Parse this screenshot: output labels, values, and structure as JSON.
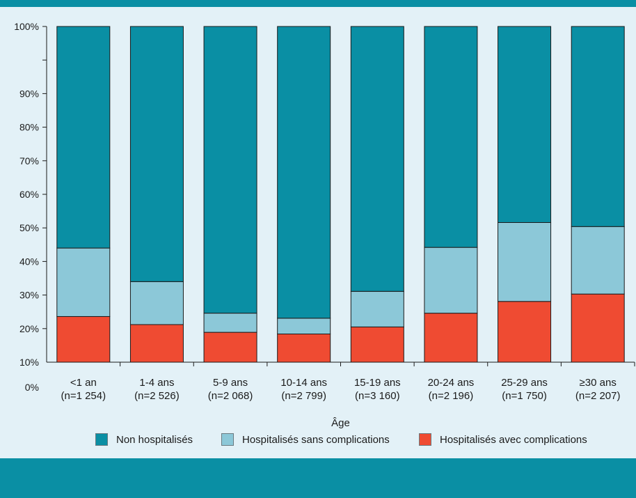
{
  "chart_data": {
    "type": "bar",
    "stacked": true,
    "title": "",
    "xlabel": "Âge",
    "ylabel": "",
    "ylim": [
      0,
      100
    ],
    "yticks": [
      "0%",
      "10%",
      "20%",
      "30%",
      "40%",
      "50%",
      "60%",
      "70%",
      "80%",
      "90%",
      "100%"
    ],
    "categories": [
      [
        "<1 an",
        "(n=1 254)"
      ],
      [
        "1-4 ans",
        "(n=2 526)"
      ],
      [
        "5-9 ans",
        "(n=2 068)"
      ],
      [
        "10-14 ans",
        "(n=2 799)"
      ],
      [
        "15-19 ans",
        "(n=3 160)"
      ],
      [
        "20-24 ans",
        "(n=2 196)"
      ],
      [
        "25-29 ans",
        "(n=1 750)"
      ],
      [
        "≥30 ans",
        "(n=2 207)"
      ]
    ],
    "series": [
      {
        "name": "Hospitalisés avec complications",
        "color": "#ef4b32",
        "values": [
          13.6,
          11.2,
          8.9,
          8.4,
          10.5,
          14.6,
          18.1,
          20.3
        ]
      },
      {
        "name": "Hospitalisés sans complications",
        "color": "#8cc8d8",
        "values": [
          20.4,
          12.8,
          5.7,
          4.7,
          10.6,
          19.6,
          23.5,
          20.1
        ]
      },
      {
        "name": "Non hospitalisés",
        "color": "#0a8fa4",
        "values": [
          66.0,
          76.0,
          85.4,
          86.9,
          78.9,
          65.8,
          58.4,
          59.6
        ]
      }
    ],
    "legend_order": [
      "Non hospitalisés",
      "Hospitalisés sans complications",
      "Hospitalisés avec complications"
    ],
    "grid": false,
    "legend_position": "bottom"
  }
}
